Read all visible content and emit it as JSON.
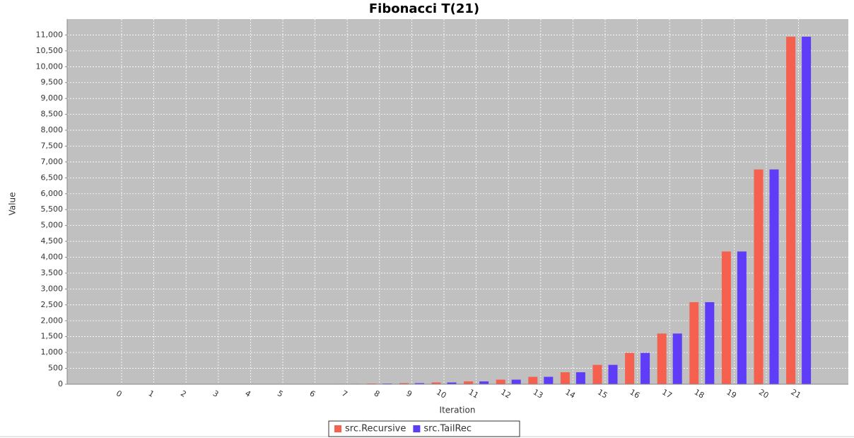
{
  "chart_data": {
    "type": "bar",
    "title": "Fibonacci T(21)",
    "x_label": "Iteration",
    "y_label": "Value",
    "categories": [
      "0",
      "1",
      "2",
      "3",
      "4",
      "5",
      "6",
      "7",
      "8",
      "9",
      "10",
      "11",
      "12",
      "13",
      "14",
      "15",
      "16",
      "17",
      "18",
      "19",
      "20",
      "21"
    ],
    "series": [
      {
        "name": "src.Recursive",
        "color": "#f5604f",
        "values": [
          0,
          1,
          1,
          2,
          3,
          5,
          8,
          13,
          21,
          34,
          55,
          89,
          144,
          233,
          377,
          610,
          987,
          1597,
          2584,
          4181,
          6765,
          10946
        ]
      },
      {
        "name": "src.TailRec",
        "color": "#5e3cf8",
        "values": [
          0,
          1,
          1,
          2,
          3,
          5,
          8,
          13,
          21,
          34,
          55,
          89,
          144,
          233,
          377,
          610,
          987,
          1597,
          2584,
          4181,
          6765,
          10946
        ]
      }
    ],
    "ylim": [
      0,
      11500
    ],
    "yticks": [
      0,
      500,
      {
        "value": 1000,
        "label": "1,000"
      },
      {
        "value": 1500,
        "label": "1,500"
      },
      {
        "value": 2000,
        "label": "2,000"
      },
      {
        "value": 2500,
        "label": "2,500"
      },
      {
        "value": 3000,
        "label": "3,000"
      },
      {
        "value": 3500,
        "label": "3,500"
      },
      {
        "value": 4000,
        "label": "4,000"
      },
      {
        "value": 4500,
        "label": "4,500"
      },
      {
        "value": 5000,
        "label": "5,000"
      },
      {
        "value": 5500,
        "label": "5,500"
      },
      {
        "value": 6000,
        "label": "6,000"
      },
      {
        "value": 6500,
        "label": "6,500"
      },
      {
        "value": 7000,
        "label": "7,000"
      },
      {
        "value": 7500,
        "label": "7,500"
      },
      {
        "value": 8000,
        "label": "8,000"
      },
      {
        "value": 8500,
        "label": "8,500"
      },
      {
        "value": 9000,
        "label": "9,000"
      },
      {
        "value": 9500,
        "label": "9,500"
      },
      {
        "value": 10000,
        "label": "10,000"
      },
      {
        "value": 10500,
        "label": "10,500"
      },
      {
        "value": 11000,
        "label": "11,000"
      }
    ],
    "grid": true,
    "legend": "bottom"
  }
}
